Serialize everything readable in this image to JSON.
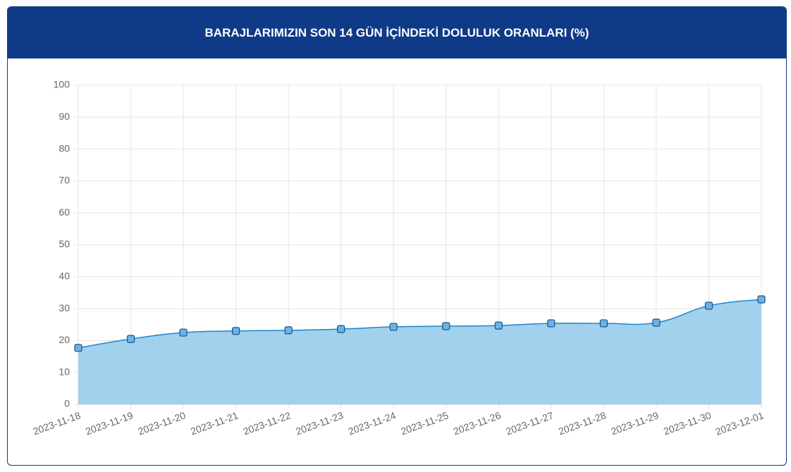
{
  "chart_data": {
    "type": "area",
    "title": "BARAJLARIMIZIN SON 14 GÜN İÇİNDEKİ DOLULUK ORANLARI (%)",
    "categories": [
      "2023-11-18",
      "2023-11-19",
      "2023-11-20",
      "2023-11-21",
      "2023-11-22",
      "2023-11-23",
      "2023-11-24",
      "2023-11-25",
      "2023-11-26",
      "2023-11-27",
      "2023-11-28",
      "2023-11-29",
      "2023-11-30",
      "2023-12-01"
    ],
    "values": [
      17.7,
      20.5,
      22.5,
      23.0,
      23.2,
      23.6,
      24.3,
      24.5,
      24.7,
      25.4,
      25.4,
      25.6,
      30.9,
      32.9
    ],
    "color": "#1a88c9",
    "fill": "#9ccfec",
    "marker_color": "#6ab3e6",
    "ylim": [
      0,
      100
    ],
    "yticks": [
      0,
      10,
      20,
      30,
      40,
      50,
      60,
      70,
      80,
      90,
      100
    ],
    "grid": true
  }
}
